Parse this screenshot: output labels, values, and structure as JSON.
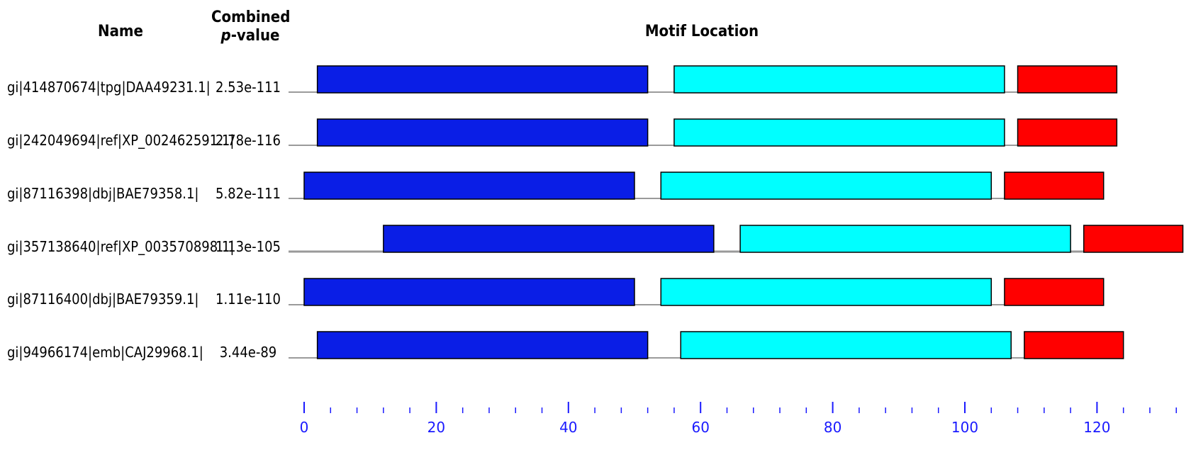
{
  "headers": {
    "name": "Name",
    "pvalue_line1": "Combined",
    "pvalue_p": "p",
    "pvalue_rest": "-value",
    "motif": "Motif Location"
  },
  "colors": {
    "motif1": "#0a1ee6",
    "motif2": "#00ffff",
    "motif3": "#ff0000",
    "axis": "#1a1aff",
    "backbone": "#9a9a9a"
  },
  "rows": [
    {
      "name": "gi|414870674|tpg|DAA49231.1|",
      "pvalue": "2.53e-111",
      "seq_start": 0,
      "seq_end": 123,
      "motifs": [
        {
          "motif": 1,
          "start": 2,
          "end": 52
        },
        {
          "motif": 2,
          "start": 56,
          "end": 106
        },
        {
          "motif": 3,
          "start": 108,
          "end": 123
        }
      ]
    },
    {
      "name": "gi|242049694|ref|XP_002462591.1|",
      "pvalue": "2.78e-116",
      "seq_start": 0,
      "seq_end": 123,
      "motifs": [
        {
          "motif": 1,
          "start": 2,
          "end": 52
        },
        {
          "motif": 2,
          "start": 56,
          "end": 106
        },
        {
          "motif": 3,
          "start": 108,
          "end": 123
        }
      ]
    },
    {
      "name": "gi|87116398|dbj|BAE79358.1|",
      "pvalue": "5.82e-111",
      "seq_start": 0,
      "seq_end": 121,
      "motifs": [
        {
          "motif": 1,
          "start": 0,
          "end": 50
        },
        {
          "motif": 2,
          "start": 54,
          "end": 104
        },
        {
          "motif": 3,
          "start": 106,
          "end": 121
        }
      ]
    },
    {
      "name": "gi|357138640|ref|XP_003570898.1|",
      "pvalue": "1.13e-105",
      "seq_start": 0,
      "seq_end": 133,
      "motifs": [
        {
          "motif": 1,
          "start": 12,
          "end": 62
        },
        {
          "motif": 2,
          "start": 66,
          "end": 116
        },
        {
          "motif": 3,
          "start": 118,
          "end": 133
        }
      ]
    },
    {
      "name": "gi|87116400|dbj|BAE79359.1|",
      "pvalue": "1.11e-110",
      "seq_start": 0,
      "seq_end": 121,
      "motifs": [
        {
          "motif": 1,
          "start": 0,
          "end": 50
        },
        {
          "motif": 2,
          "start": 54,
          "end": 104
        },
        {
          "motif": 3,
          "start": 106,
          "end": 121
        }
      ]
    },
    {
      "name": "gi|94966174|emb|CAJ29968.1|",
      "pvalue": "3.44e-89",
      "seq_start": 0,
      "seq_end": 124,
      "motifs": [
        {
          "motif": 1,
          "start": 2,
          "end": 52
        },
        {
          "motif": 2,
          "start": 57,
          "end": 107
        },
        {
          "motif": 3,
          "start": 109,
          "end": 124
        }
      ]
    }
  ],
  "axis": {
    "min": 0,
    "max": 133,
    "major_ticks": [
      0,
      20,
      40,
      60,
      80,
      100,
      120
    ],
    "major_labels": [
      "0",
      "20",
      "40",
      "60",
      "80",
      "100",
      "120"
    ],
    "minor_step": 4
  }
}
